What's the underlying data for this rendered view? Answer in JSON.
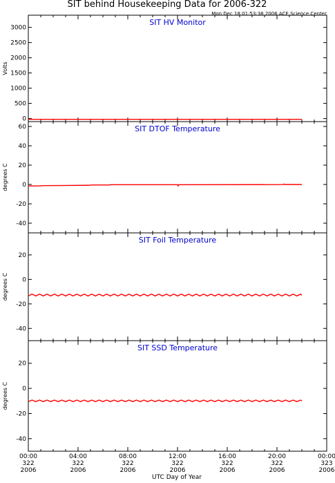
{
  "header": {
    "title": "SIT behind Housekeeping Data for 2006-322",
    "timestamp": "Mon Dec 18 01:53:38 2006 ACE Science Center"
  },
  "colors": {
    "trace": "#ff0000",
    "panel_title": "#0000cc",
    "axes": "#000000",
    "background": "#ffffff"
  },
  "chart_data": [
    {
      "type": "line",
      "title": "SIT HV Monitor",
      "ylabel": "Volts",
      "ylim": [
        -100,
        3400
      ],
      "yticks": [
        0,
        500,
        1000,
        1500,
        2000,
        2500,
        3000
      ],
      "xlim": [
        0,
        24
      ],
      "series": [
        {
          "x": [
            0,
            22
          ],
          "y": [
            -25,
            -25
          ]
        }
      ]
    },
    {
      "type": "line",
      "title": "SIT DTOF Temperature",
      "ylabel": "degrees C",
      "ylim": [
        -50,
        65
      ],
      "yticks": [
        -40,
        -20,
        0,
        20,
        40,
        60
      ],
      "xlim": [
        0,
        24
      ],
      "series": [
        {
          "x": [
            0,
            1,
            1.05,
            3,
            5,
            5.1,
            6.5,
            6.6,
            12,
            12.05,
            12.1,
            20.5,
            20.55,
            20.6,
            22
          ],
          "y": [
            -1.5,
            -1.5,
            -1.2,
            -1.0,
            -0.8,
            -0.5,
            -0.5,
            -0.2,
            -0.2,
            -1.5,
            -0.2,
            -0.1,
            0.5,
            0,
            0
          ]
        }
      ]
    },
    {
      "type": "line",
      "title": "SIT Foil Temperature",
      "ylabel": "degrees C",
      "ylim": [
        -50,
        38
      ],
      "yticks": [
        -40,
        -20,
        0,
        20
      ],
      "xlim": [
        0,
        24
      ],
      "series": [
        {
          "x": [
            0,
            0.3,
            0.6,
            0.9,
            1.2,
            1.5,
            1.8,
            2.1,
            2.4,
            2.7,
            3.0,
            3.3,
            3.6,
            3.9,
            4.2,
            4.5,
            4.8,
            5.1,
            5.4,
            5.7,
            6.0,
            6.3,
            6.6,
            6.9,
            7.2,
            7.5,
            7.8,
            8.1,
            8.4,
            8.7,
            9.0,
            9.3,
            9.6,
            9.9,
            10.2,
            10.5,
            10.8,
            11.1,
            11.4,
            11.7,
            12.0,
            12.3,
            12.6,
            12.9,
            13.2,
            13.5,
            13.8,
            14.1,
            14.4,
            14.7,
            15.0,
            15.3,
            15.6,
            15.9,
            16.2,
            16.5,
            16.8,
            17.1,
            17.4,
            17.7,
            18.0,
            18.3,
            18.6,
            18.9,
            19.2,
            19.5,
            19.8,
            20.1,
            20.4,
            20.7,
            21.0,
            21.3,
            21.6,
            21.9,
            22.0
          ],
          "y": [
            -13.5,
            -12.0,
            -13.5,
            -12.0,
            -13.5,
            -12.0,
            -13.5,
            -12.0,
            -13.5,
            -12.0,
            -13.5,
            -12.0,
            -13.5,
            -12.0,
            -13.5,
            -12.0,
            -13.5,
            -12.0,
            -13.5,
            -12.0,
            -13.5,
            -12.0,
            -13.5,
            -12.0,
            -13.5,
            -12.0,
            -13.5,
            -12.0,
            -13.5,
            -12.0,
            -13.5,
            -12.0,
            -13.5,
            -12.0,
            -13.5,
            -12.0,
            -13.5,
            -12.0,
            -13.5,
            -12.0,
            -13.5,
            -12.0,
            -13.5,
            -12.0,
            -13.5,
            -12.0,
            -13.5,
            -12.0,
            -13.5,
            -12.0,
            -13.5,
            -12.0,
            -13.5,
            -12.0,
            -13.5,
            -12.0,
            -13.5,
            -12.0,
            -13.5,
            -12.0,
            -13.5,
            -12.0,
            -13.5,
            -12.0,
            -13.5,
            -12.0,
            -13.5,
            -12.0,
            -13.5,
            -12.0,
            -13.5,
            -12.0,
            -13.5,
            -12.0,
            -13.0
          ]
        }
      ]
    },
    {
      "type": "line",
      "title": "SIT SSD Temperature",
      "ylabel": "degrees C",
      "ylim": [
        -50,
        38
      ],
      "yticks": [
        -40,
        -20,
        0,
        20
      ],
      "xlim": [
        0,
        24
      ],
      "series": [
        {
          "x": [
            0,
            0.3,
            0.6,
            0.9,
            1.2,
            1.5,
            1.8,
            2.1,
            2.4,
            2.7,
            3.0,
            3.3,
            3.6,
            3.9,
            4.2,
            4.5,
            4.8,
            5.1,
            5.4,
            5.7,
            6.0,
            6.3,
            6.6,
            6.9,
            7.2,
            7.5,
            7.8,
            8.1,
            8.4,
            8.7,
            9.0,
            9.3,
            9.6,
            9.9,
            10.2,
            10.5,
            10.8,
            11.1,
            11.4,
            11.7,
            12.0,
            12.3,
            12.6,
            12.9,
            13.2,
            13.5,
            13.8,
            14.1,
            14.4,
            14.7,
            15.0,
            15.3,
            15.6,
            15.9,
            16.2,
            16.5,
            16.8,
            17.1,
            17.4,
            17.7,
            18.0,
            18.3,
            18.6,
            18.9,
            19.2,
            19.5,
            19.8,
            20.1,
            20.4,
            20.7,
            21.0,
            21.3,
            21.6,
            21.9,
            22.0
          ],
          "y": [
            -10.5,
            -9.3,
            -10.5,
            -9.3,
            -10.5,
            -9.3,
            -10.5,
            -9.3,
            -10.5,
            -9.3,
            -10.5,
            -9.3,
            -10.5,
            -9.3,
            -10.5,
            -9.3,
            -10.5,
            -9.3,
            -10.5,
            -9.3,
            -10.5,
            -9.3,
            -10.5,
            -9.3,
            -10.5,
            -9.3,
            -10.5,
            -9.3,
            -10.5,
            -9.3,
            -10.5,
            -9.3,
            -10.5,
            -9.3,
            -10.5,
            -9.3,
            -10.5,
            -9.3,
            -10.5,
            -9.3,
            -10.5,
            -9.3,
            -10.5,
            -9.3,
            -10.5,
            -9.3,
            -10.5,
            -9.3,
            -10.5,
            -9.3,
            -10.5,
            -9.3,
            -10.5,
            -9.3,
            -10.5,
            -9.3,
            -10.5,
            -9.3,
            -10.5,
            -9.3,
            -10.5,
            -9.3,
            -10.5,
            -9.3,
            -10.5,
            -9.3,
            -10.5,
            -9.3,
            -10.5,
            -9.3,
            -10.5,
            -9.3,
            -10.5,
            -9.3,
            -10.0
          ]
        }
      ]
    }
  ],
  "xaxis": {
    "label": "UTC Day of Year",
    "ticks": [
      {
        "h": 0,
        "time": "00:00",
        "day": "322",
        "year": "2006"
      },
      {
        "h": 4,
        "time": "04:00",
        "day": "322",
        "year": "2006"
      },
      {
        "h": 8,
        "time": "08:00",
        "day": "322",
        "year": "2006"
      },
      {
        "h": 12,
        "time": "12:00",
        "day": "322",
        "year": "2006"
      },
      {
        "h": 16,
        "time": "16:00",
        "day": "322",
        "year": "2006"
      },
      {
        "h": 20,
        "time": "20:00",
        "day": "322",
        "year": "2006"
      },
      {
        "h": 24,
        "time": "00:00",
        "day": "323",
        "year": "2006"
      }
    ]
  }
}
